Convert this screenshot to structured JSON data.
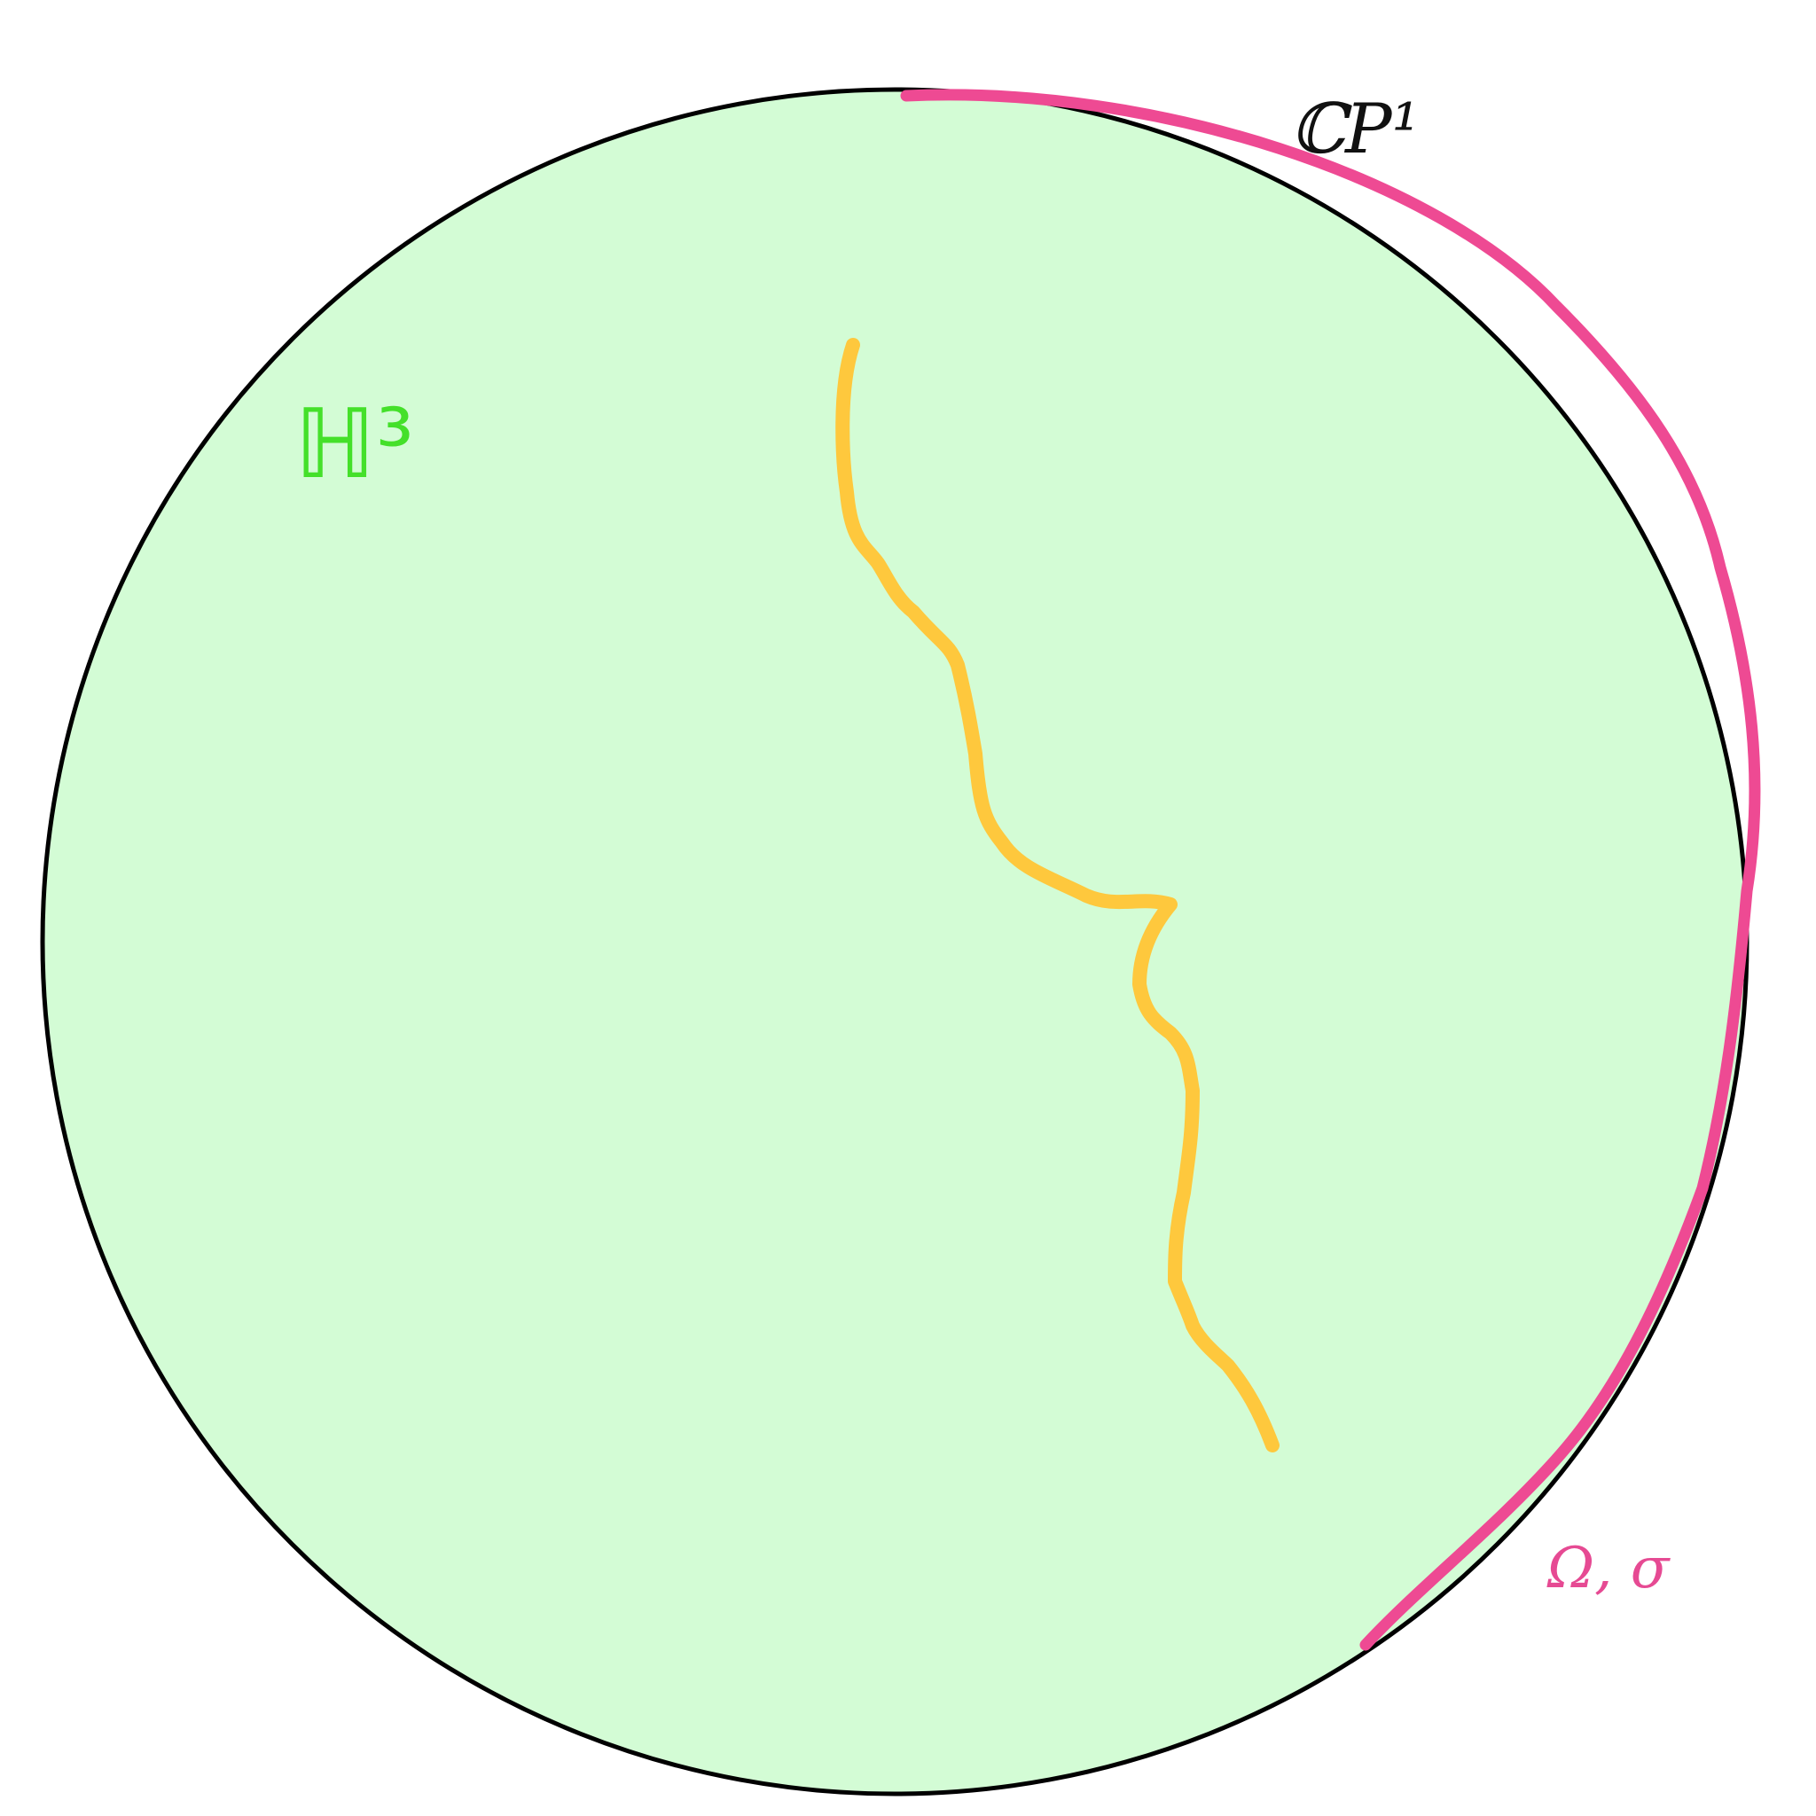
{
  "labels": {
    "boundary": "ℂP¹",
    "hyperbolic_space": "ℍ³",
    "region": "Ω, σ"
  },
  "colors": {
    "ball_fill": "#d3fcd5",
    "ball_outline": "#000000",
    "boundary_arc": "#ee4a93",
    "curve": "#fec83d",
    "hyperbolic_label": "#44e02a",
    "boundary_label": "#111111",
    "region_label": "#e64a93"
  }
}
